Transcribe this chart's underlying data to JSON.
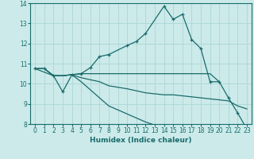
{
  "xlabel": "Humidex (Indice chaleur)",
  "bg_color": "#cceaea",
  "grid_color": "#b0d8d8",
  "line_color": "#1a6b6b",
  "xlim": [
    -0.5,
    23.5
  ],
  "ylim": [
    8,
    14
  ],
  "xticks": [
    0,
    1,
    2,
    3,
    4,
    5,
    6,
    7,
    8,
    9,
    10,
    11,
    12,
    13,
    14,
    15,
    16,
    17,
    18,
    19,
    20,
    21,
    22,
    23
  ],
  "yticks": [
    8,
    9,
    10,
    11,
    12,
    13,
    14
  ],
  "line1_x": [
    0,
    1,
    2,
    3,
    4,
    5,
    6,
    7,
    8,
    10,
    11,
    12,
    14,
    15,
    16,
    17,
    18,
    19,
    20,
    21,
    22,
    23
  ],
  "line1_y": [
    10.75,
    10.75,
    10.4,
    9.6,
    10.45,
    10.5,
    10.8,
    11.35,
    11.45,
    11.9,
    12.1,
    12.5,
    13.85,
    13.2,
    13.45,
    12.2,
    11.75,
    10.1,
    10.1,
    9.3,
    8.55,
    7.75
  ],
  "line2_x": [
    0,
    1,
    2,
    3,
    4,
    5,
    6,
    7,
    8,
    10,
    11,
    12,
    14,
    15,
    16,
    17,
    18,
    19,
    20
  ],
  "line2_y": [
    10.75,
    10.75,
    10.4,
    10.4,
    10.45,
    10.5,
    10.5,
    10.5,
    10.5,
    10.5,
    10.5,
    10.5,
    10.5,
    10.5,
    10.5,
    10.5,
    10.5,
    10.5,
    10.1
  ],
  "line3_x": [
    0,
    1,
    2,
    3,
    4,
    5,
    6,
    7,
    8,
    10,
    11,
    12,
    14,
    15,
    16,
    17,
    18,
    19,
    20,
    21,
    22,
    23
  ],
  "line3_y": [
    10.75,
    10.75,
    10.4,
    10.4,
    10.45,
    10.3,
    10.2,
    10.1,
    9.9,
    9.75,
    9.65,
    9.55,
    9.45,
    9.45,
    9.4,
    9.35,
    9.3,
    9.25,
    9.2,
    9.15,
    8.9,
    8.75
  ],
  "line4_x": [
    0,
    2,
    3,
    4,
    5,
    6,
    7,
    8,
    10,
    11,
    12,
    14,
    15,
    16,
    17,
    18,
    19,
    20,
    21,
    22,
    23
  ],
  "line4_y": [
    10.75,
    10.4,
    10.4,
    10.45,
    10.1,
    9.7,
    9.3,
    8.9,
    8.5,
    8.3,
    8.1,
    7.8,
    7.8,
    7.8,
    7.8,
    7.8,
    7.8,
    7.8,
    7.8,
    7.8,
    7.75
  ]
}
